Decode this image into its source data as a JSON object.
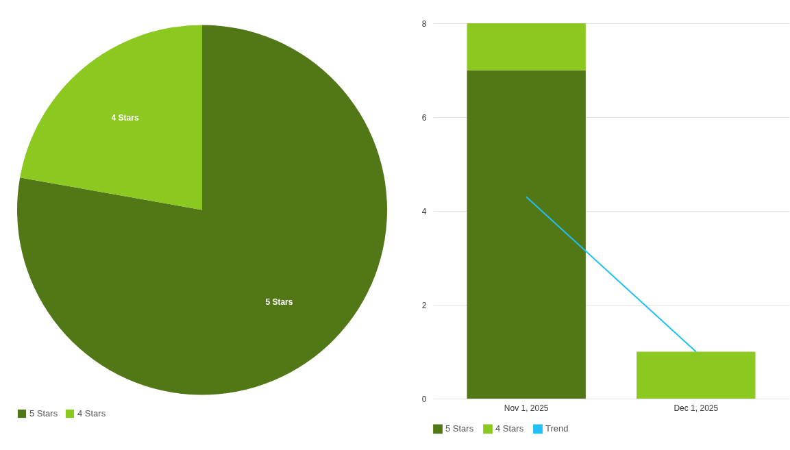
{
  "chart_data": [
    {
      "type": "pie",
      "categories": [
        "5 Stars",
        "4 Stars"
      ],
      "values": [
        77.8,
        22.2
      ],
      "colors": [
        "#527716",
        "#8bc820"
      ],
      "legend": "bottom left"
    },
    {
      "type": "bar",
      "stacked": true,
      "categories": [
        "Nov 1, 2025",
        "Dec 1, 2025"
      ],
      "series": [
        {
          "name": "5 Stars",
          "color": "#527716",
          "values": [
            7,
            0
          ]
        },
        {
          "name": "4 Stars",
          "color": "#8bc820",
          "values": [
            1,
            1
          ]
        },
        {
          "name": "Trend",
          "type": "line",
          "color": "#1ec0f5",
          "values": [
            4.3,
            1
          ]
        }
      ],
      "ylim": [
        0,
        8
      ],
      "yticks": [
        0,
        2,
        4,
        6,
        8
      ],
      "grid": "y",
      "legend": "bottom left"
    }
  ]
}
